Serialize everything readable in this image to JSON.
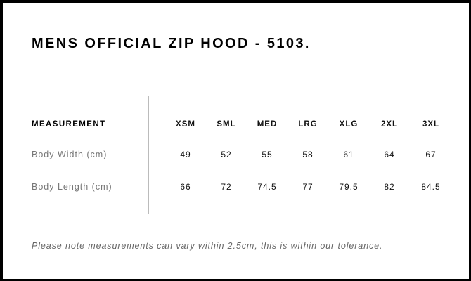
{
  "title": "MENS OFFICIAL ZIP HOOD - 5103.",
  "table": {
    "header_label": "MEASUREMENT",
    "sizes": [
      "XSM",
      "SML",
      "MED",
      "LRG",
      "XLG",
      "2XL",
      "3XL"
    ],
    "rows": [
      {
        "label": "Body Width (cm)",
        "values": [
          "49",
          "52",
          "55",
          "58",
          "61",
          "64",
          "67"
        ]
      },
      {
        "label": "Body Length (cm)",
        "values": [
          "66",
          "72",
          "74.5",
          "77",
          "79.5",
          "82",
          "84.5"
        ]
      }
    ]
  },
  "note": "Please note measurements can vary within 2.5cm, this is within our tolerance."
}
